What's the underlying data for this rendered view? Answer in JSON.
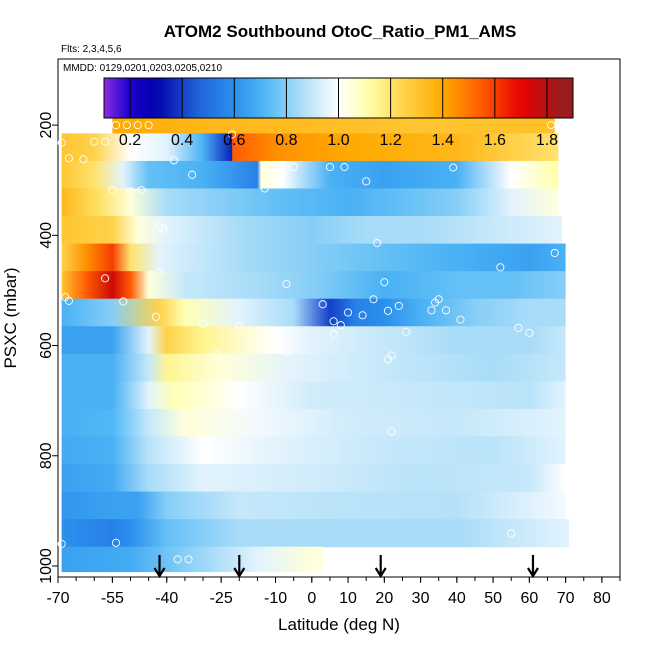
{
  "chart_data": {
    "type": "heatmap",
    "title": "ATOM2 Southbound OtoC_Ratio_PM1_AMS",
    "flights_note": "Flts: 2,3,4,5,6",
    "dates_note": "MMDD: 0129,0201,0203,0205,0210",
    "xlabel": "Latitude (deg N)",
    "ylabel": "PSXC (mbar)",
    "xlim": [
      -70,
      85
    ],
    "ylim": [
      1020,
      80
    ],
    "x_ticks": [
      -70,
      -55,
      -40,
      -25,
      -10,
      0,
      10,
      20,
      30,
      40,
      50,
      60,
      70,
      80
    ],
    "x_tick_labels": [
      "-70",
      "-55",
      "-40",
      "-25",
      "-10",
      "0",
      "10",
      "20",
      "30",
      "40",
      "50",
      "60",
      "70",
      "80"
    ],
    "y_ticks": [
      200,
      400,
      600,
      800,
      1000
    ],
    "y_tick_labels": [
      "200",
      "400",
      "600",
      "800",
      "1000"
    ],
    "colorbar": {
      "range": [
        0.1,
        1.9
      ],
      "ticks": [
        0.2,
        0.4,
        0.6,
        0.8,
        1.0,
        1.2,
        1.4,
        1.6,
        1.8
      ],
      "tick_labels": [
        "0.2",
        "0.4",
        "0.6",
        "0.8",
        "1.0",
        "1.2",
        "1.4",
        "1.6",
        "1.8"
      ]
    },
    "color_scale": [
      {
        "v": 0.1,
        "c": "#8a2be2"
      },
      {
        "v": 0.2,
        "c": "#1a00cc"
      },
      {
        "v": 0.3,
        "c": "#0000aa"
      },
      {
        "v": 0.45,
        "c": "#1f5fd8"
      },
      {
        "v": 0.6,
        "c": "#2b90ee"
      },
      {
        "v": 0.72,
        "c": "#4fb8f5"
      },
      {
        "v": 0.85,
        "c": "#a8dcf8"
      },
      {
        "v": 1.0,
        "c": "#ffffff"
      },
      {
        "v": 1.12,
        "c": "#ffffa6"
      },
      {
        "v": 1.25,
        "c": "#ffd24a"
      },
      {
        "v": 1.4,
        "c": "#ffaa00"
      },
      {
        "v": 1.55,
        "c": "#ff5a00"
      },
      {
        "v": 1.7,
        "c": "#e80000"
      },
      {
        "v": 1.85,
        "c": "#9b1c1c"
      }
    ],
    "bands": [
      {
        "p_top": 172,
        "p_bot": 215,
        "x0": -55,
        "x1": 67,
        "nodes": [
          [
            -55,
            1.4
          ],
          [
            -30,
            1.35
          ],
          [
            0,
            1.33
          ],
          [
            30,
            1.3
          ],
          [
            67,
            1.32
          ]
        ]
      },
      {
        "p_top": 215,
        "p_bot": 265,
        "x0": -69,
        "x1": 68,
        "nodes": [
          [
            -69,
            1.3
          ],
          [
            -60,
            1.25
          ],
          [
            -50,
            1.0
          ],
          [
            -40,
            0.95
          ],
          [
            -30,
            0.7
          ],
          [
            -22,
            0.35
          ],
          [
            -21.9,
            1.55
          ],
          [
            -10,
            1.45
          ],
          [
            10,
            1.4
          ],
          [
            40,
            1.35
          ],
          [
            68,
            1.2
          ]
        ]
      },
      {
        "p_top": 265,
        "p_bot": 315,
        "x0": -69,
        "x1": 68,
        "nodes": [
          [
            -69,
            1.3
          ],
          [
            -60,
            1.2
          ],
          [
            -52,
            0.95
          ],
          [
            -45,
            0.75
          ],
          [
            -30,
            0.7
          ],
          [
            -15,
            0.55
          ],
          [
            -14,
            1.05
          ],
          [
            -8,
            1.0
          ],
          [
            5,
            0.7
          ],
          [
            20,
            0.65
          ],
          [
            40,
            0.7
          ],
          [
            55,
            1.0
          ],
          [
            68,
            1.12
          ]
        ]
      },
      {
        "p_top": 315,
        "p_bot": 365,
        "x0": -69,
        "x1": 68,
        "nodes": [
          [
            -69,
            1.35
          ],
          [
            -58,
            1.2
          ],
          [
            -50,
            1.05
          ],
          [
            -40,
            0.85
          ],
          [
            -25,
            0.8
          ],
          [
            -10,
            0.75
          ],
          [
            10,
            0.7
          ],
          [
            25,
            0.75
          ],
          [
            40,
            0.8
          ],
          [
            55,
            0.95
          ],
          [
            68,
            1.05
          ]
        ]
      },
      {
        "p_top": 365,
        "p_bot": 415,
        "x0": -69,
        "x1": 69,
        "nodes": [
          [
            -69,
            1.3
          ],
          [
            -55,
            1.25
          ],
          [
            -48,
            1.05
          ],
          [
            -40,
            0.95
          ],
          [
            -20,
            0.85
          ],
          [
            0,
            0.8
          ],
          [
            15,
            0.85
          ],
          [
            30,
            0.85
          ],
          [
            50,
            0.9
          ],
          [
            69,
            0.95
          ]
        ]
      },
      {
        "p_top": 415,
        "p_bot": 465,
        "x0": -69,
        "x1": 70,
        "nodes": [
          [
            -69,
            1.25
          ],
          [
            -62,
            1.45
          ],
          [
            -55,
            1.6
          ],
          [
            -50,
            1.2
          ],
          [
            -42,
            0.95
          ],
          [
            -20,
            0.85
          ],
          [
            0,
            0.8
          ],
          [
            20,
            0.75
          ],
          [
            40,
            0.7
          ],
          [
            60,
            0.65
          ],
          [
            70,
            0.7
          ]
        ]
      },
      {
        "p_top": 465,
        "p_bot": 515,
        "x0": -69,
        "x1": 70,
        "nodes": [
          [
            -69,
            1.3
          ],
          [
            -62,
            1.55
          ],
          [
            -55,
            1.75
          ],
          [
            -50,
            1.55
          ],
          [
            -45,
            1.05
          ],
          [
            -35,
            0.9
          ],
          [
            -15,
            0.85
          ],
          [
            0,
            0.8
          ],
          [
            20,
            0.7
          ],
          [
            40,
            0.75
          ],
          [
            55,
            0.75
          ],
          [
            70,
            0.8
          ]
        ]
      },
      {
        "p_top": 515,
        "p_bot": 565,
        "x0": -69,
        "x1": 70,
        "nodes": [
          [
            -69,
            0.7
          ],
          [
            -55,
            0.8
          ],
          [
            -42,
            1.25
          ],
          [
            -35,
            1.1
          ],
          [
            -20,
            0.95
          ],
          [
            -5,
            0.85
          ],
          [
            5,
            0.4
          ],
          [
            12,
            0.55
          ],
          [
            20,
            0.6
          ],
          [
            30,
            0.7
          ],
          [
            45,
            0.8
          ],
          [
            60,
            0.85
          ],
          [
            70,
            0.85
          ]
        ]
      },
      {
        "p_top": 565,
        "p_bot": 615,
        "x0": -69,
        "x1": 70,
        "nodes": [
          [
            -69,
            0.65
          ],
          [
            -55,
            0.65
          ],
          [
            -45,
            0.95
          ],
          [
            -40,
            1.25
          ],
          [
            -30,
            1.15
          ],
          [
            -10,
            1.0
          ],
          [
            0,
            0.95
          ],
          [
            20,
            0.9
          ],
          [
            40,
            0.85
          ],
          [
            60,
            0.85
          ],
          [
            70,
            0.9
          ]
        ]
      },
      {
        "p_top": 615,
        "p_bot": 665,
        "x0": -69,
        "x1": 70,
        "nodes": [
          [
            -69,
            0.7
          ],
          [
            -55,
            0.7
          ],
          [
            -45,
            0.9
          ],
          [
            -40,
            1.15
          ],
          [
            -25,
            1.05
          ],
          [
            -5,
            0.95
          ],
          [
            20,
            0.9
          ],
          [
            50,
            0.85
          ],
          [
            70,
            0.9
          ]
        ]
      },
      {
        "p_top": 665,
        "p_bot": 715,
        "x0": -69,
        "x1": 70,
        "nodes": [
          [
            -69,
            0.7
          ],
          [
            -55,
            0.7
          ],
          [
            -45,
            0.95
          ],
          [
            -38,
            1.1
          ],
          [
            -20,
            1.0
          ],
          [
            0,
            0.92
          ],
          [
            30,
            0.9
          ],
          [
            60,
            0.88
          ],
          [
            70,
            0.95
          ]
        ]
      },
      {
        "p_top": 715,
        "p_bot": 765,
        "x0": -69,
        "x1": 70,
        "nodes": [
          [
            -69,
            0.7
          ],
          [
            -55,
            0.72
          ],
          [
            -45,
            0.9
          ],
          [
            -35,
            1.05
          ],
          [
            -15,
            0.98
          ],
          [
            10,
            0.92
          ],
          [
            40,
            0.9
          ],
          [
            70,
            0.95
          ]
        ]
      },
      {
        "p_top": 765,
        "p_bot": 815,
        "x0": -69,
        "x1": 70,
        "nodes": [
          [
            -69,
            0.68
          ],
          [
            -55,
            0.7
          ],
          [
            -45,
            0.88
          ],
          [
            -30,
            1.0
          ],
          [
            -10,
            0.95
          ],
          [
            20,
            0.9
          ],
          [
            50,
            0.88
          ],
          [
            70,
            0.95
          ]
        ]
      },
      {
        "p_top": 815,
        "p_bot": 865,
        "x0": -69,
        "x1": 70,
        "nodes": [
          [
            -69,
            0.65
          ],
          [
            -55,
            0.68
          ],
          [
            -45,
            0.85
          ],
          [
            -30,
            0.95
          ],
          [
            0,
            0.92
          ],
          [
            30,
            0.88
          ],
          [
            60,
            0.9
          ],
          [
            70,
            1.0
          ]
        ]
      },
      {
        "p_top": 865,
        "p_bot": 915,
        "x0": -69,
        "x1": 70,
        "nodes": [
          [
            -69,
            0.62
          ],
          [
            -55,
            0.65
          ],
          [
            -48,
            0.65
          ],
          [
            -40,
            0.8
          ],
          [
            -20,
            0.9
          ],
          [
            10,
            0.88
          ],
          [
            40,
            0.87
          ],
          [
            70,
            0.98
          ]
        ]
      },
      {
        "p_top": 915,
        "p_bot": 965,
        "x0": -69,
        "x1": 71,
        "nodes": [
          [
            -69,
            0.6
          ],
          [
            -55,
            0.55
          ],
          [
            -50,
            0.6
          ],
          [
            -40,
            0.75
          ],
          [
            -20,
            0.85
          ],
          [
            10,
            0.85
          ],
          [
            40,
            0.85
          ],
          [
            71,
            0.95
          ]
        ]
      },
      {
        "p_top": 965,
        "p_bot": 1010,
        "x0": -69,
        "x1": 3,
        "nodes": [
          [
            -69,
            0.65
          ],
          [
            -50,
            0.68
          ],
          [
            -35,
            0.8
          ],
          [
            -15,
            0.95
          ],
          [
            0,
            1.05
          ],
          [
            3,
            1.05
          ]
        ]
      }
    ],
    "sample_points": [
      [
        -54,
        200
      ],
      [
        -51,
        200
      ],
      [
        -48,
        200
      ],
      [
        -45,
        200
      ],
      [
        -22,
        217
      ],
      [
        66,
        200
      ],
      [
        -69,
        232
      ],
      [
        -60,
        230
      ],
      [
        -57,
        230
      ],
      [
        -49,
        243
      ],
      [
        -67,
        260
      ],
      [
        -63,
        262
      ],
      [
        -38,
        264
      ],
      [
        -33,
        290
      ],
      [
        -7,
        278
      ],
      [
        -5,
        276
      ],
      [
        5,
        276
      ],
      [
        9,
        276
      ],
      [
        15,
        302
      ],
      [
        39,
        277
      ],
      [
        -13,
        315
      ],
      [
        -55,
        318
      ],
      [
        -50,
        320
      ],
      [
        -47,
        318
      ],
      [
        -42,
        385
      ],
      [
        -41,
        388
      ],
      [
        -42,
        467
      ],
      [
        18,
        414
      ],
      [
        67,
        432
      ],
      [
        -68,
        512
      ],
      [
        -67,
        519
      ],
      [
        -57,
        478
      ],
      [
        -52,
        520
      ],
      [
        -43,
        548
      ],
      [
        -7,
        488
      ],
      [
        3,
        525
      ],
      [
        -30,
        560
      ],
      [
        -20,
        565
      ],
      [
        6,
        556
      ],
      [
        8,
        563
      ],
      [
        10,
        540
      ],
      [
        17,
        516
      ],
      [
        20,
        485
      ],
      [
        21,
        537
      ],
      [
        24,
        528
      ],
      [
        26,
        575
      ],
      [
        33,
        536
      ],
      [
        35,
        516
      ],
      [
        34,
        522
      ],
      [
        37,
        536
      ],
      [
        41,
        553
      ],
      [
        52,
        458
      ],
      [
        57,
        568
      ],
      [
        60,
        577
      ],
      [
        -26,
        615
      ],
      [
        6,
        580
      ],
      [
        14,
        545
      ],
      [
        22,
        618
      ],
      [
        21,
        625
      ],
      [
        -7,
        611
      ],
      [
        22,
        756
      ],
      [
        -69,
        960
      ],
      [
        -54,
        958
      ],
      [
        55,
        941
      ],
      [
        -37,
        988
      ],
      [
        -34,
        988
      ]
    ],
    "flight_arrows_lat": [
      -42,
      -20,
      19,
      61
    ]
  }
}
